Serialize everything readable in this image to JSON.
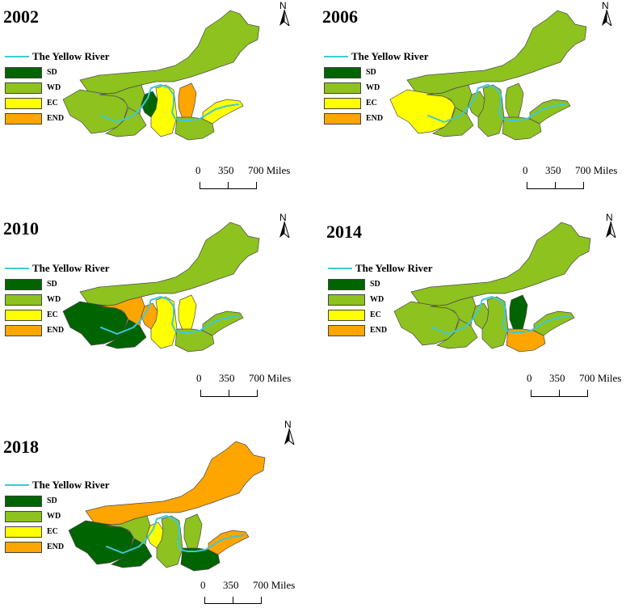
{
  "legend": {
    "river_label": "The Yellow River",
    "classes": [
      {
        "code": "SD",
        "color": "#006400"
      },
      {
        "code": "WD",
        "color": "#8DC21F"
      },
      {
        "code": "EC",
        "color": "#FFFF00"
      },
      {
        "code": "END",
        "color": "#FFA500"
      }
    ]
  },
  "scale": {
    "labels": [
      "0",
      "350",
      "700 Miles"
    ]
  },
  "north_label": "N",
  "colors": {
    "SD": "#006400",
    "WD": "#8DC21F",
    "EC": "#FFFF00",
    "END": "#FFA500",
    "base": "#9BCD60",
    "river": "#3fc8d8"
  },
  "maps": [
    {
      "year": "2002",
      "regions": {
        "qinghai": "WD",
        "sichuan": "WD",
        "gansu": "WD",
        "ningxia": "SD",
        "innermongolia": "WD",
        "shaanxi": "EC",
        "shanxi": "END",
        "henan": "WD",
        "shandong": "EC"
      }
    },
    {
      "year": "2006",
      "regions": {
        "qinghai": "EC",
        "sichuan": "WD",
        "gansu": "WD",
        "ningxia": "WD",
        "innermongolia": "WD",
        "shaanxi": "WD",
        "shanxi": "WD",
        "henan": "WD",
        "shandong": "WD"
      }
    },
    {
      "year": "2010",
      "regions": {
        "qinghai": "SD",
        "sichuan": "SD",
        "gansu": "END",
        "ningxia": "END",
        "innermongolia": "WD",
        "shaanxi": "EC",
        "shanxi": "EC",
        "henan": "WD",
        "shandong": "WD"
      }
    },
    {
      "year": "2014",
      "regions": {
        "qinghai": "WD",
        "sichuan": "WD",
        "gansu": "WD",
        "ningxia": "WD",
        "innermongolia": "WD",
        "shaanxi": "WD",
        "shanxi": "SD",
        "henan": "END",
        "shandong": "WD"
      }
    },
    {
      "year": "2018",
      "regions": {
        "qinghai": "SD",
        "sichuan": "SD",
        "gansu": "WD",
        "ningxia": "EC",
        "innermongolia": "END",
        "shaanxi": "WD",
        "shanxi": "WD",
        "henan": "SD",
        "shandong": "END"
      }
    }
  ]
}
